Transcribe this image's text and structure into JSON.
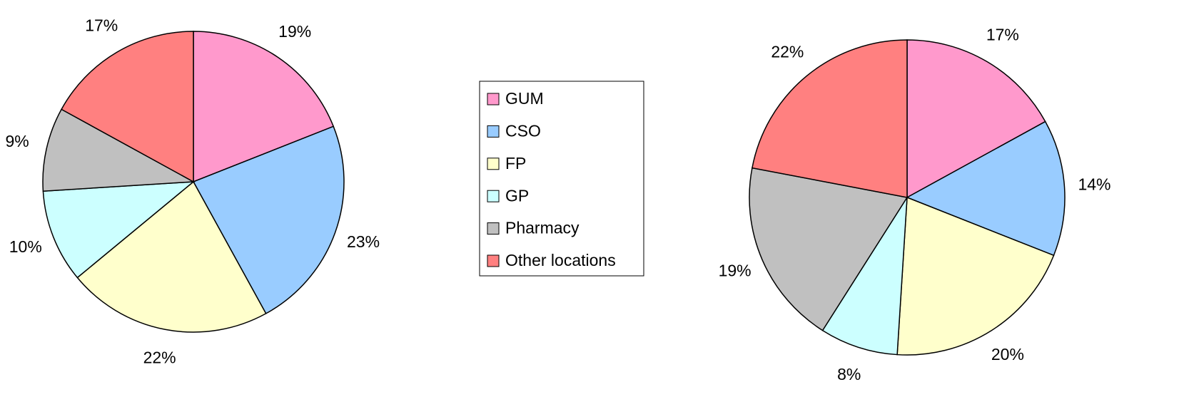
{
  "chart_data": [
    {
      "type": "pie",
      "values": [
        19,
        23,
        22,
        10,
        9,
        17
      ],
      "value_labels": [
        "19%",
        "23%",
        "22%",
        "10%",
        "9%",
        "17%"
      ]
    },
    {
      "type": "pie",
      "values": [
        17,
        14,
        20,
        8,
        19,
        22
      ],
      "value_labels": [
        "17%",
        "14%",
        "20%",
        "8%",
        "19%",
        "22%"
      ]
    }
  ],
  "legend": {
    "entries": [
      "GUM",
      "CSO",
      "FP",
      "GP",
      "Pharmacy",
      "Other locations"
    ],
    "colors": [
      "#ff99cc",
      "#99ccff",
      "#ffffcc",
      "#ccffff",
      "#c0c0c0",
      "#ff8080"
    ]
  }
}
